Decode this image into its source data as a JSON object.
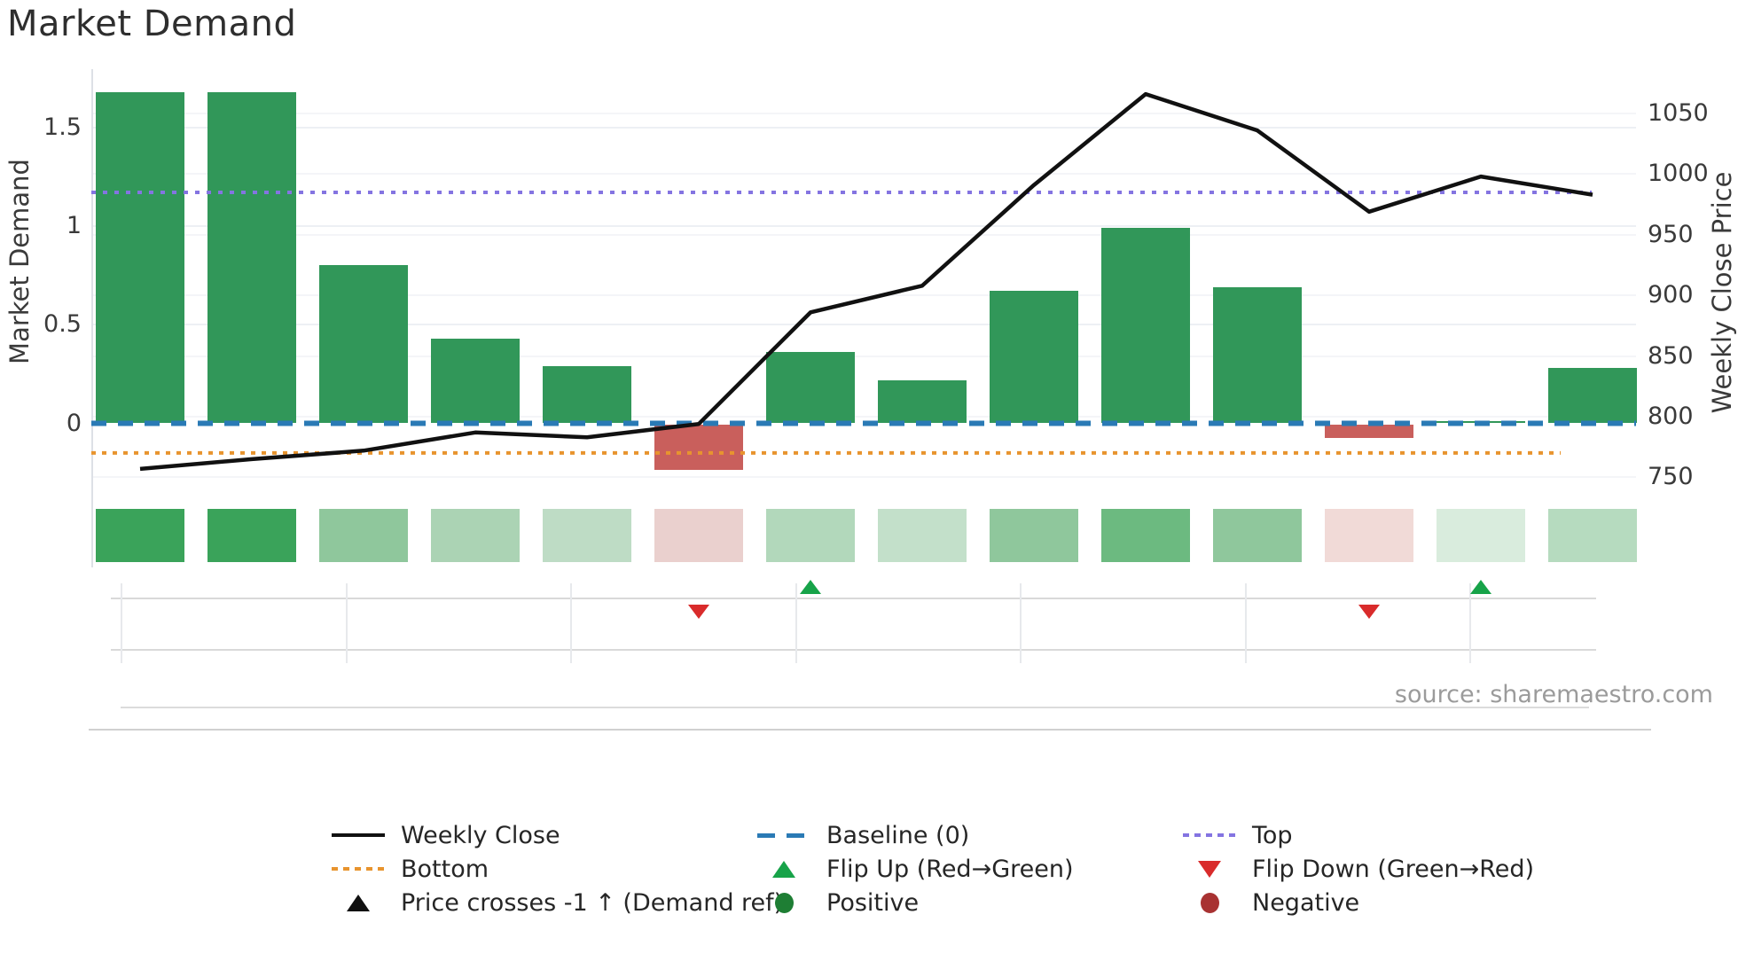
{
  "title": "Market Demand",
  "source": "source: sharemaestro.com",
  "chart_data": {
    "type": "bar",
    "title": "Market Demand",
    "left_axis": {
      "label": "Market Demand",
      "ticks": [
        0,
        0.5,
        1,
        1.5
      ],
      "tick_labels": [
        "0",
        "0.5",
        "1",
        "1.5"
      ],
      "range": [
        -0.45,
        1.79
      ]
    },
    "right_axis": {
      "label": "Weekly Close Price",
      "ticks": [
        750,
        800,
        850,
        900,
        950,
        1000,
        1050
      ],
      "range": [
        745,
        1072
      ]
    },
    "series": [
      {
        "name": "Market Demand",
        "type": "bar",
        "values": [
          1.68,
          1.68,
          0.8,
          0.43,
          0.29,
          -0.23,
          0.36,
          0.22,
          0.67,
          0.99,
          0.69,
          -0.07,
          0.01,
          0.28
        ]
      },
      {
        "name": "Weekly Close",
        "type": "line",
        "axis": "right",
        "values": [
          757,
          765,
          772,
          787,
          783,
          794,
          886,
          908,
          991,
          1066,
          1036,
          969,
          998,
          983
        ]
      }
    ],
    "hlines": {
      "baseline": {
        "label": "Baseline (0)",
        "value": 0,
        "style": "dashed",
        "color": "#2a7ab5"
      },
      "top": {
        "label": "Top",
        "value": 1.17,
        "style": "dotted",
        "color": "#8474e1"
      },
      "bottom": {
        "label": "Bottom",
        "value": -0.15,
        "style": "dotted",
        "color": "#e8942e"
      }
    },
    "heatmap_colors": [
      "#3aa35a",
      "#3aa35a",
      "#8fc79c",
      "#abd3b4",
      "#bedcc5",
      "#ead0ce",
      "#b2d8bb",
      "#c3e0ca",
      "#8fc79c",
      "#6cba80",
      "#8fc79c",
      "#f1dad7",
      "#d9ecdd",
      "#b6dbbf"
    ],
    "markers": {
      "flip_up_indices": [
        6,
        12
      ],
      "flip_down_indices": [
        5,
        11
      ],
      "flip_up_color": "#17a349",
      "flip_down_color": "#d92b2b"
    },
    "colors": {
      "bar_positive": "#319759",
      "bar_negative": "#c95f5c",
      "line": "#111111",
      "grid": "#edf0f4"
    },
    "legend": {
      "items": [
        {
          "col": 0,
          "row": 0,
          "swatch": "line",
          "color": "#111111",
          "label": "Weekly Close"
        },
        {
          "col": 0,
          "row": 1,
          "swatch": "dotted",
          "color": "#e8942e",
          "label": "Bottom"
        },
        {
          "col": 0,
          "row": 2,
          "swatch": "tri-up",
          "color": "#111111",
          "label": "Price crosses -1 ↑ (Demand ref)"
        },
        {
          "col": 1,
          "row": 0,
          "swatch": "dashed",
          "color": "#2a7ab5",
          "label": "Baseline (0)"
        },
        {
          "col": 1,
          "row": 1,
          "swatch": "tri-up",
          "color": "#17a349",
          "label": "Flip Up (Red→Green)"
        },
        {
          "col": 1,
          "row": 2,
          "swatch": "circle",
          "color": "#1e7e34",
          "label": "Positive"
        },
        {
          "col": 2,
          "row": 0,
          "swatch": "dotted",
          "color": "#8474e1",
          "label": "Top"
        },
        {
          "col": 2,
          "row": 1,
          "swatch": "tri-down",
          "color": "#d92b2b",
          "label": "Flip Down (Green→Red)"
        },
        {
          "col": 2,
          "row": 2,
          "swatch": "circle",
          "color": "#a83232",
          "label": "Negative"
        }
      ]
    }
  }
}
